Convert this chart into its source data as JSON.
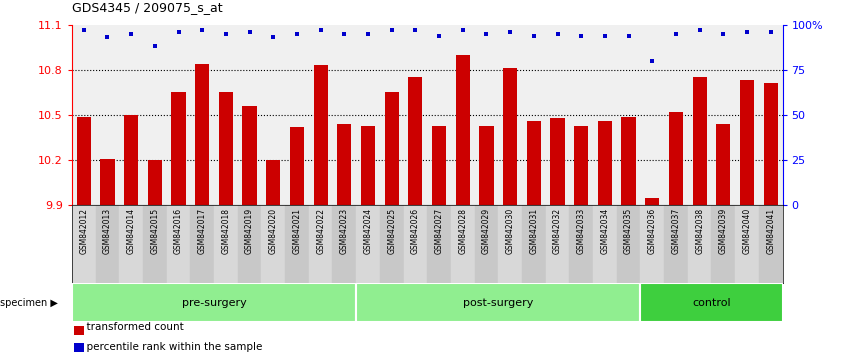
{
  "title": "GDS4345 / 209075_s_at",
  "samples": [
    "GSM842012",
    "GSM842013",
    "GSM842014",
    "GSM842015",
    "GSM842016",
    "GSM842017",
    "GSM842018",
    "GSM842019",
    "GSM842020",
    "GSM842021",
    "GSM842022",
    "GSM842023",
    "GSM842024",
    "GSM842025",
    "GSM842026",
    "GSM842027",
    "GSM842028",
    "GSM842029",
    "GSM842030",
    "GSM842031",
    "GSM842032",
    "GSM842033",
    "GSM842034",
    "GSM842035",
    "GSM842036",
    "GSM842037",
    "GSM842038",
    "GSM842039",
    "GSM842040",
    "GSM842041"
  ],
  "bar_values": [
    10.49,
    10.21,
    10.5,
    10.2,
    10.65,
    10.84,
    10.65,
    10.56,
    10.2,
    10.42,
    10.83,
    10.44,
    10.43,
    10.65,
    10.75,
    10.43,
    10.9,
    10.43,
    10.81,
    10.46,
    10.48,
    10.43,
    10.46,
    10.49,
    9.95,
    10.52,
    10.75,
    10.44,
    10.73,
    10.71
  ],
  "percentile_values": [
    97,
    93,
    95,
    88,
    96,
    97,
    95,
    96,
    93,
    95,
    97,
    95,
    95,
    97,
    97,
    94,
    97,
    95,
    96,
    94,
    95,
    94,
    94,
    94,
    80,
    95,
    97,
    95,
    96,
    96
  ],
  "groups": [
    {
      "label": "pre-surgery",
      "start": 0,
      "end": 12,
      "color": "#90EE90"
    },
    {
      "label": "post-surgery",
      "start": 12,
      "end": 24,
      "color": "#90EE90"
    },
    {
      "label": "control",
      "start": 24,
      "end": 30,
      "color": "#3ECF3E"
    }
  ],
  "ylim_left": [
    9.9,
    11.1
  ],
  "yticks_left": [
    9.9,
    10.2,
    10.5,
    10.8,
    11.1
  ],
  "ylim_right": [
    0,
    100
  ],
  "yticks_right": [
    0,
    25,
    50,
    75,
    100
  ],
  "yticklabels_right": [
    "0",
    "25",
    "50",
    "75",
    "100%"
  ],
  "bar_color": "#cc0000",
  "dot_color": "#0000cc",
  "background_plot": "#f0f0f0",
  "specimen_label": "specimen",
  "legend_bar_label": "transformed count",
  "legend_dot_label": "percentile rank within the sample",
  "fig_width": 8.46,
  "fig_height": 3.54,
  "dpi": 100
}
